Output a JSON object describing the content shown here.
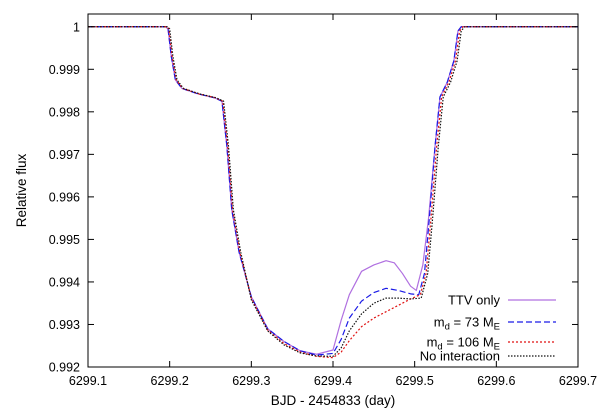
{
  "chart_data": {
    "type": "line",
    "title": "",
    "xlabel": "BJD - 2454833 (day)",
    "ylabel": "Relative flux",
    "xlim": [
      6299.1,
      6299.7
    ],
    "ylim": [
      0.992,
      1.0003
    ],
    "xticks": [
      "6299.1",
      "6299.2",
      "6299.3",
      "6299.4",
      "6299.5",
      "6299.6",
      "6299.7"
    ],
    "yticks": [
      "0.992",
      "0.993",
      "0.994",
      "0.995",
      "0.996",
      "0.997",
      "0.998",
      "0.999",
      "1"
    ],
    "grid": false,
    "legend_position": "bottom-right",
    "series": [
      {
        "name": "TTV only",
        "color": "#b070e0",
        "dash": "solid",
        "legend": {
          "main": "TTV only"
        },
        "points": [
          [
            6299.1,
            1
          ],
          [
            6299.195,
            1
          ],
          [
            6299.198,
            0.99995
          ],
          [
            6299.202,
            0.9993
          ],
          [
            6299.207,
            0.99875
          ],
          [
            6299.215,
            0.99855
          ],
          [
            6299.235,
            0.99842
          ],
          [
            6299.255,
            0.99833
          ],
          [
            6299.264,
            0.99825
          ],
          [
            6299.27,
            0.9972
          ],
          [
            6299.276,
            0.9957
          ],
          [
            6299.285,
            0.9947
          ],
          [
            6299.3,
            0.99365
          ],
          [
            6299.32,
            0.9929
          ],
          [
            6299.34,
            0.9926
          ],
          [
            6299.36,
            0.99238
          ],
          [
            6299.38,
            0.9923
          ],
          [
            6299.4,
            0.9924
          ],
          [
            6299.41,
            0.9931
          ],
          [
            6299.42,
            0.9937
          ],
          [
            6299.435,
            0.99425
          ],
          [
            6299.45,
            0.9944
          ],
          [
            6299.465,
            0.9945
          ],
          [
            6299.475,
            0.99445
          ],
          [
            6299.485,
            0.9942
          ],
          [
            6299.495,
            0.9939
          ],
          [
            6299.502,
            0.9938
          ],
          [
            6299.51,
            0.9944
          ],
          [
            6299.517,
            0.9955
          ],
          [
            6299.525,
            0.9972
          ],
          [
            6299.531,
            0.99835
          ],
          [
            6299.54,
            0.9987
          ],
          [
            6299.548,
            0.9992
          ],
          [
            6299.553,
            0.9999
          ],
          [
            6299.557,
            1
          ],
          [
            6299.7,
            1
          ]
        ]
      },
      {
        "name": "m_d = 73 M_E",
        "color": "#1a1ae6",
        "dash": "6 3",
        "legend": {
          "pre": "m",
          "sub": "d",
          "mid": " = 73 M",
          "sub2": "E"
        },
        "points": [
          [
            6299.1,
            1
          ],
          [
            6299.195,
            1
          ],
          [
            6299.198,
            0.99995
          ],
          [
            6299.202,
            0.9993
          ],
          [
            6299.207,
            0.99875
          ],
          [
            6299.215,
            0.99855
          ],
          [
            6299.235,
            0.99842
          ],
          [
            6299.255,
            0.99833
          ],
          [
            6299.264,
            0.99825
          ],
          [
            6299.27,
            0.9972
          ],
          [
            6299.276,
            0.9957
          ],
          [
            6299.285,
            0.9947
          ],
          [
            6299.3,
            0.99365
          ],
          [
            6299.32,
            0.9929
          ],
          [
            6299.34,
            0.9926
          ],
          [
            6299.36,
            0.99238
          ],
          [
            6299.38,
            0.99228
          ],
          [
            6299.4,
            0.99232
          ],
          [
            6299.41,
            0.99265
          ],
          [
            6299.42,
            0.99315
          ],
          [
            6299.435,
            0.99355
          ],
          [
            6299.45,
            0.99375
          ],
          [
            6299.465,
            0.99385
          ],
          [
            6299.48,
            0.9938
          ],
          [
            6299.495,
            0.99372
          ],
          [
            6299.505,
            0.9937
          ],
          [
            6299.512,
            0.9942
          ],
          [
            6299.518,
            0.9955
          ],
          [
            6299.525,
            0.9972
          ],
          [
            6299.531,
            0.99835
          ],
          [
            6299.54,
            0.9987
          ],
          [
            6299.548,
            0.9992
          ],
          [
            6299.553,
            0.9999
          ],
          [
            6299.557,
            1
          ],
          [
            6299.7,
            1
          ]
        ]
      },
      {
        "name": "m_d = 106 M_E",
        "color": "#e01010",
        "dash": "2 2",
        "legend": {
          "pre": "m",
          "sub": "d",
          "mid": " = 106 M",
          "sub2": "E"
        },
        "points": [
          [
            6299.1,
            1
          ],
          [
            6299.196,
            1
          ],
          [
            6299.199,
            0.99995
          ],
          [
            6299.203,
            0.9993
          ],
          [
            6299.208,
            0.99875
          ],
          [
            6299.216,
            0.99855
          ],
          [
            6299.236,
            0.99842
          ],
          [
            6299.256,
            0.99833
          ],
          [
            6299.265,
            0.99825
          ],
          [
            6299.271,
            0.9972
          ],
          [
            6299.277,
            0.9957
          ],
          [
            6299.286,
            0.9947
          ],
          [
            6299.3,
            0.99362
          ],
          [
            6299.32,
            0.99287
          ],
          [
            6299.34,
            0.99255
          ],
          [
            6299.36,
            0.99235
          ],
          [
            6299.38,
            0.99225
          ],
          [
            6299.4,
            0.99222
          ],
          [
            6299.41,
            0.99235
          ],
          [
            6299.42,
            0.99262
          ],
          [
            6299.435,
            0.99295
          ],
          [
            6299.45,
            0.99315
          ],
          [
            6299.465,
            0.9933
          ],
          [
            6299.48,
            0.99345
          ],
          [
            6299.495,
            0.9936
          ],
          [
            6299.507,
            0.9937
          ],
          [
            6299.514,
            0.9942
          ],
          [
            6299.52,
            0.9955
          ],
          [
            6299.527,
            0.9972
          ],
          [
            6299.533,
            0.99835
          ],
          [
            6299.542,
            0.9987
          ],
          [
            6299.55,
            0.9992
          ],
          [
            6299.555,
            0.9999
          ],
          [
            6299.559,
            1
          ],
          [
            6299.7,
            1
          ]
        ]
      },
      {
        "name": "No interaction",
        "color": "#111111",
        "dash": "1.5 1.5",
        "legend": {
          "main": "No interaction"
        },
        "points": [
          [
            6299.1,
            1
          ],
          [
            6299.197,
            1
          ],
          [
            6299.2,
            0.99995
          ],
          [
            6299.204,
            0.9993
          ],
          [
            6299.209,
            0.99875
          ],
          [
            6299.217,
            0.99855
          ],
          [
            6299.237,
            0.99842
          ],
          [
            6299.257,
            0.99833
          ],
          [
            6299.266,
            0.99825
          ],
          [
            6299.272,
            0.9972
          ],
          [
            6299.278,
            0.9957
          ],
          [
            6299.287,
            0.9947
          ],
          [
            6299.3,
            0.99358
          ],
          [
            6299.32,
            0.99285
          ],
          [
            6299.34,
            0.99252
          ],
          [
            6299.36,
            0.99233
          ],
          [
            6299.38,
            0.99226
          ],
          [
            6299.4,
            0.99225
          ],
          [
            6299.41,
            0.99245
          ],
          [
            6299.42,
            0.99285
          ],
          [
            6299.435,
            0.99325
          ],
          [
            6299.45,
            0.9935
          ],
          [
            6299.465,
            0.99362
          ],
          [
            6299.48,
            0.99362
          ],
          [
            6299.495,
            0.9936
          ],
          [
            6299.508,
            0.99362
          ],
          [
            6299.516,
            0.9942
          ],
          [
            6299.522,
            0.9955
          ],
          [
            6299.529,
            0.9972
          ],
          [
            6299.535,
            0.99835
          ],
          [
            6299.544,
            0.9987
          ],
          [
            6299.552,
            0.9992
          ],
          [
            6299.557,
            0.9999
          ],
          [
            6299.561,
            1
          ],
          [
            6299.7,
            1
          ]
        ]
      }
    ]
  }
}
